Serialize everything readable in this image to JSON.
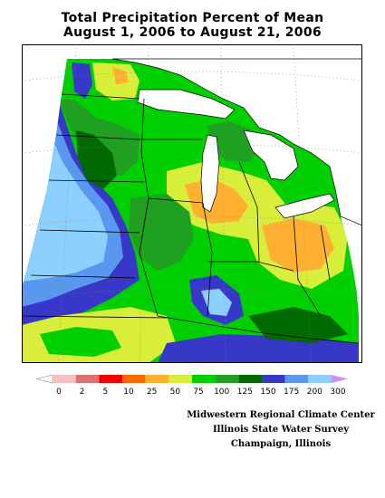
{
  "title": {
    "line1": "Total Precipitation Percent of Mean",
    "line2": "August 1, 2006 to August 21, 2006"
  },
  "legend": {
    "labels": [
      "0",
      "2",
      "5",
      "10",
      "25",
      "50",
      "75",
      "100",
      "125",
      "150",
      "175",
      "200",
      "300"
    ],
    "colors": [
      "#ffffff",
      "#f5c0c0",
      "#e07070",
      "#ee0000",
      "#ff6a00",
      "#ffb030",
      "#d8ee3a",
      "#00d000",
      "#20a020",
      "#006a00",
      "#3838c8",
      "#5a98f0",
      "#8cd0ff",
      "#d090f0"
    ]
  },
  "map": {
    "colors": {
      "water": "#ffffff",
      "outside": "#ffffff",
      "border": "#000000",
      "grid": "#808080"
    }
  },
  "credits": {
    "line1": "Midwestern Regional Climate Center",
    "line2": "Illinois State Water Survey",
    "line3": "Champaign, Illinois"
  }
}
